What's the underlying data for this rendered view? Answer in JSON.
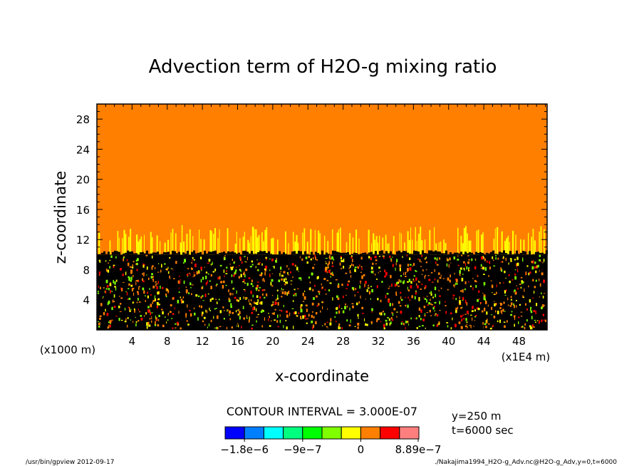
{
  "chart_data": {
    "type": "heatmap",
    "title": "Advection term of H2O-g mixing ratio",
    "xlabel": "x-coordinate",
    "ylabel": "z-coordinate",
    "x_ticks": [
      "4",
      "8",
      "12",
      "16",
      "20",
      "24",
      "28",
      "32",
      "36",
      "40",
      "44",
      "48"
    ],
    "y_ticks": [
      "4",
      "8",
      "12",
      "16",
      "20",
      "24",
      "28"
    ],
    "xlim": [
      0,
      51.2
    ],
    "ylim": [
      0,
      30
    ],
    "x_unit_left": "(x1000 m)",
    "x_unit_right": "(x1E4 m)",
    "contour_interval_text": "CONTOUR INTERVAL = 3.000E-07",
    "region_upper": {
      "z_range": [
        14,
        30
      ],
      "value_class": "0 to 3e-7",
      "color": "#ff7f00"
    },
    "region_transition": {
      "z_range": [
        10,
        14
      ],
      "dominant_color": "#ffff00"
    },
    "region_lower": {
      "z_range": [
        0,
        10
      ],
      "dominant_color": "#000000"
    },
    "colorbar": {
      "colors": [
        "#0000ff",
        "#007fff",
        "#00ffff",
        "#00ff7f",
        "#00ff00",
        "#7fff00",
        "#ffff00",
        "#ff7f00",
        "#ff0000",
        "#ff7f7f"
      ],
      "labels": [
        "−1.8e−6",
        "−9e−7",
        "0",
        "8.89e−7"
      ],
      "label_positions_value": [
        -1.8e-06,
        -9e-07,
        0,
        8.89e-07
      ],
      "vmin": -2.1e-06,
      "vmax": 9e-07
    },
    "info": {
      "y": "y=250 m",
      "t": "t=6000 sec"
    }
  },
  "footer": {
    "left": "/usr/bin/gpview  2012-09-17",
    "right": "./Nakajima1994_H2O-g_Adv.nc@H2O-g_Adv,y=0,t=6000"
  }
}
